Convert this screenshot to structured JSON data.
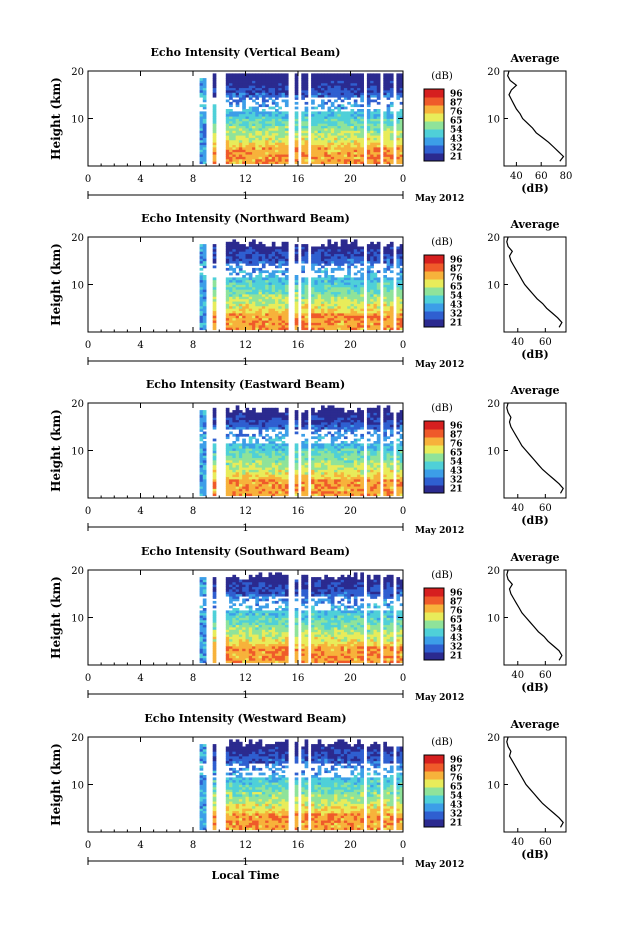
{
  "chart_data": [
    {
      "type": "heatmap",
      "title": "Echo Intensity (Vertical Beam)",
      "ylabel": "Height (km)",
      "x_ticks": [
        "0",
        "4",
        "8",
        "12",
        "16",
        "20",
        "0"
      ],
      "y_ticks": [
        "20",
        "10"
      ],
      "date_ticks": [
        "1"
      ],
      "date_label": "May 2012",
      "colorbar": {
        "unit": "(dB)",
        "ticks": [
          "96",
          "87",
          "76",
          "65",
          "54",
          "43",
          "32",
          "21"
        ]
      },
      "average": {
        "title": "Average",
        "xlabel": "(dB)",
        "x_ticks": [
          "40",
          "60",
          "80"
        ],
        "y_ticks": [
          "20",
          "10"
        ],
        "xlim": [
          30,
          80
        ],
        "profile": [
          [
            1,
            75
          ],
          [
            2,
            78
          ],
          [
            3,
            74
          ],
          [
            4,
            70
          ],
          [
            5,
            66
          ],
          [
            6,
            61
          ],
          [
            7,
            56
          ],
          [
            8,
            53
          ],
          [
            9,
            49
          ],
          [
            10,
            45
          ],
          [
            11,
            43
          ],
          [
            12,
            40
          ],
          [
            13,
            38
          ],
          [
            14,
            36
          ],
          [
            15,
            34
          ],
          [
            16,
            36
          ],
          [
            17,
            40
          ],
          [
            18,
            35
          ],
          [
            19,
            33
          ],
          [
            20,
            34
          ]
        ]
      }
    },
    {
      "type": "heatmap",
      "title": "Echo Intensity (Northward Beam)",
      "ylabel": "Height (km)",
      "x_ticks": [
        "0",
        "4",
        "8",
        "12",
        "16",
        "20",
        "0"
      ],
      "y_ticks": [
        "20",
        "10"
      ],
      "date_ticks": [
        "1"
      ],
      "date_label": "May 2012",
      "colorbar": {
        "unit": "(dB)",
        "ticks": [
          "96",
          "87",
          "76",
          "65",
          "54",
          "43",
          "32",
          "21"
        ]
      },
      "average": {
        "title": "Average",
        "xlabel": "(dB)",
        "x_ticks": [
          "40",
          "60"
        ],
        "y_ticks": [
          "20",
          "10"
        ],
        "xlim": [
          30,
          75
        ],
        "profile": [
          [
            1,
            70
          ],
          [
            2,
            72
          ],
          [
            3,
            69
          ],
          [
            4,
            65
          ],
          [
            5,
            61
          ],
          [
            6,
            58
          ],
          [
            7,
            54
          ],
          [
            8,
            51
          ],
          [
            9,
            48
          ],
          [
            10,
            45
          ],
          [
            11,
            43
          ],
          [
            12,
            41
          ],
          [
            13,
            39
          ],
          [
            14,
            37
          ],
          [
            15,
            35
          ],
          [
            16,
            34
          ],
          [
            17,
            36
          ],
          [
            18,
            33
          ],
          [
            19,
            32
          ],
          [
            20,
            33
          ]
        ]
      }
    },
    {
      "type": "heatmap",
      "title": "Echo Intensity (Eastward Beam)",
      "ylabel": "Height (km)",
      "x_ticks": [
        "0",
        "4",
        "8",
        "12",
        "16",
        "20",
        "0"
      ],
      "y_ticks": [
        "20",
        "10"
      ],
      "date_ticks": [
        "1"
      ],
      "date_label": "May 2012",
      "colorbar": {
        "unit": "(dB)",
        "ticks": [
          "96",
          "87",
          "76",
          "65",
          "54",
          "43",
          "32",
          "21"
        ]
      },
      "average": {
        "title": "Average",
        "xlabel": "(dB)",
        "x_ticks": [
          "40",
          "60"
        ],
        "y_ticks": [
          "20",
          "10"
        ],
        "xlim": [
          30,
          75
        ],
        "profile": [
          [
            1,
            71
          ],
          [
            2,
            73
          ],
          [
            3,
            70
          ],
          [
            4,
            66
          ],
          [
            5,
            62
          ],
          [
            6,
            58
          ],
          [
            7,
            55
          ],
          [
            8,
            52
          ],
          [
            9,
            49
          ],
          [
            10,
            46
          ],
          [
            11,
            43
          ],
          [
            12,
            41
          ],
          [
            13,
            39
          ],
          [
            14,
            37
          ],
          [
            15,
            35
          ],
          [
            16,
            34
          ],
          [
            17,
            35
          ],
          [
            18,
            33
          ],
          [
            19,
            32
          ],
          [
            20,
            33
          ]
        ]
      }
    },
    {
      "type": "heatmap",
      "title": "Echo Intensity (Southward Beam)",
      "ylabel": "Height (km)",
      "x_ticks": [
        "0",
        "4",
        "8",
        "12",
        "16",
        "20",
        "0"
      ],
      "y_ticks": [
        "20",
        "10"
      ],
      "date_ticks": [
        "1"
      ],
      "date_label": "May 2012",
      "colorbar": {
        "unit": "(dB)",
        "ticks": [
          "96",
          "87",
          "76",
          "65",
          "54",
          "43",
          "32",
          "21"
        ]
      },
      "average": {
        "title": "Average",
        "xlabel": "(dB)",
        "x_ticks": [
          "40",
          "60"
        ],
        "y_ticks": [
          "20",
          "10"
        ],
        "xlim": [
          30,
          75
        ],
        "profile": [
          [
            1,
            70
          ],
          [
            2,
            72
          ],
          [
            3,
            70
          ],
          [
            4,
            66
          ],
          [
            5,
            62
          ],
          [
            6,
            59
          ],
          [
            7,
            55
          ],
          [
            8,
            52
          ],
          [
            9,
            49
          ],
          [
            10,
            46
          ],
          [
            11,
            43
          ],
          [
            12,
            41
          ],
          [
            13,
            39
          ],
          [
            14,
            37
          ],
          [
            15,
            35
          ],
          [
            16,
            34
          ],
          [
            17,
            36
          ],
          [
            18,
            33
          ],
          [
            19,
            32
          ],
          [
            20,
            33
          ]
        ]
      }
    },
    {
      "type": "heatmap",
      "title": "Echo Intensity (Westward Beam)",
      "ylabel": "Height (km)",
      "x_ticks": [
        "0",
        "4",
        "8",
        "12",
        "16",
        "20",
        "0"
      ],
      "y_ticks": [
        "20",
        "10"
      ],
      "date_ticks": [
        "1"
      ],
      "date_label": "May 2012",
      "colorbar": {
        "unit": "(dB)",
        "ticks": [
          "96",
          "87",
          "76",
          "65",
          "54",
          "43",
          "32",
          "21"
        ]
      },
      "average": {
        "title": "Average",
        "xlabel": "(dB)",
        "x_ticks": [
          "40",
          "60"
        ],
        "y_ticks": [
          "20",
          "10"
        ],
        "xlim": [
          30,
          75
        ],
        "profile": [
          [
            1,
            71
          ],
          [
            2,
            73
          ],
          [
            3,
            70
          ],
          [
            4,
            66
          ],
          [
            5,
            62
          ],
          [
            6,
            58
          ],
          [
            7,
            55
          ],
          [
            8,
            52
          ],
          [
            9,
            49
          ],
          [
            10,
            46
          ],
          [
            11,
            44
          ],
          [
            12,
            42
          ],
          [
            13,
            40
          ],
          [
            14,
            38
          ],
          [
            15,
            36
          ],
          [
            16,
            34
          ],
          [
            17,
            35
          ],
          [
            18,
            33
          ],
          [
            19,
            32
          ],
          [
            20,
            33
          ]
        ]
      }
    }
  ],
  "xlabel": "Local Time",
  "colorscale": [
    "#2b2a8f",
    "#2f5fd0",
    "#3c9ee8",
    "#4fd0d8",
    "#8fe39a",
    "#e8ec5a",
    "#f7b23b",
    "#ef5a2a",
    "#d61f1f"
  ]
}
